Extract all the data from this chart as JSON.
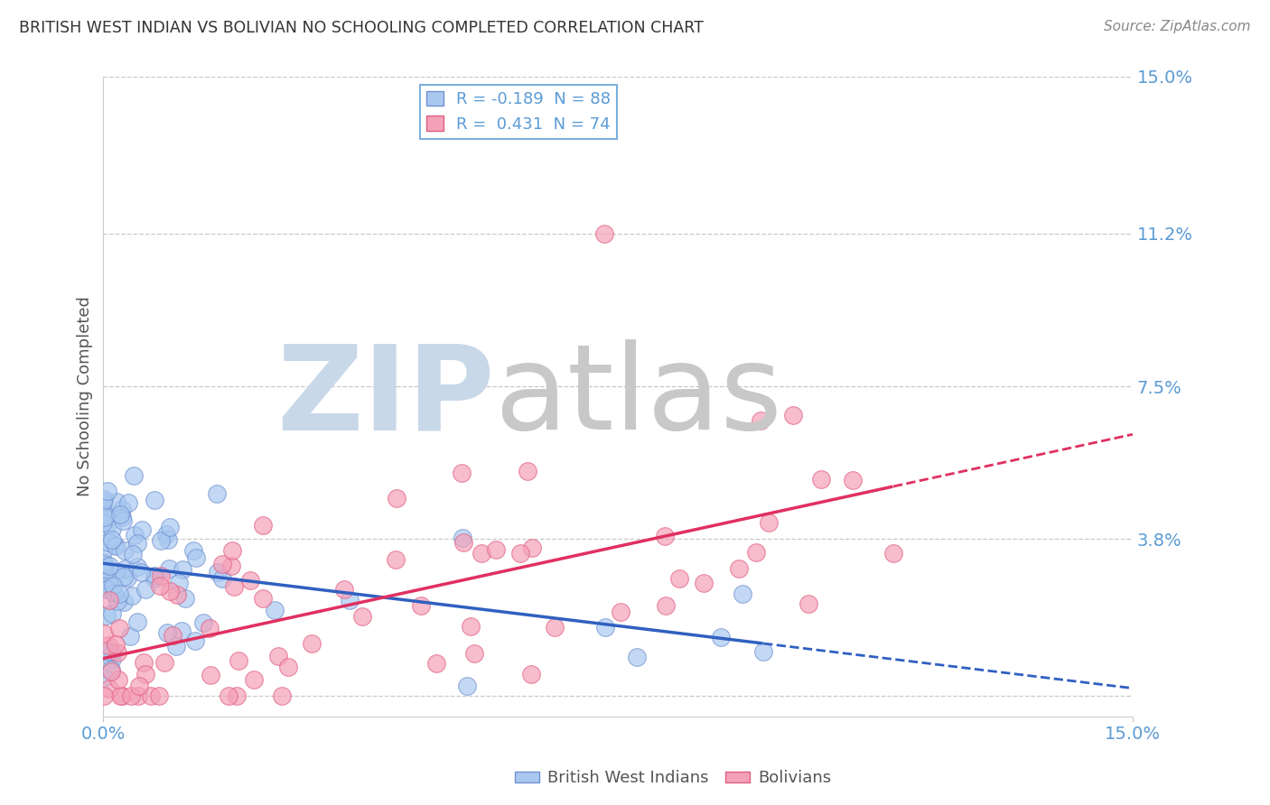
{
  "title": "BRITISH WEST INDIAN VS BOLIVIAN NO SCHOOLING COMPLETED CORRELATION CHART",
  "source": "Source: ZipAtlas.com",
  "ylabel": "No Schooling Completed",
  "xmin": 0.0,
  "xmax": 0.15,
  "ymin": -0.005,
  "ymax": 0.15,
  "ytick_vals": [
    0.0,
    0.038,
    0.075,
    0.112,
    0.15
  ],
  "ytick_labels": [
    "",
    "3.8%",
    "7.5%",
    "11.2%",
    "15.0%"
  ],
  "xticks": [
    0.0,
    0.15
  ],
  "xtick_labels": [
    "0.0%",
    "15.0%"
  ],
  "r_blue": -0.189,
  "n_blue": 88,
  "r_pink": 0.431,
  "n_pink": 74,
  "blue_color": "#a8c8f0",
  "pink_color": "#f4a0b8",
  "blue_edge": "#7090d0",
  "pink_edge": "#e06080",
  "blue_line_color": "#3060c0",
  "pink_line_color": "#e03060",
  "legend_label_blue": "British West Indians",
  "legend_label_pink": "Bolivians",
  "background_color": "#ffffff",
  "grid_color": "#c8c8c8",
  "title_color": "#333333",
  "tick_color": "#5b9bd5",
  "watermark_zip_color": "#c8d8e8",
  "watermark_atlas_color": "#c8c8c8"
}
